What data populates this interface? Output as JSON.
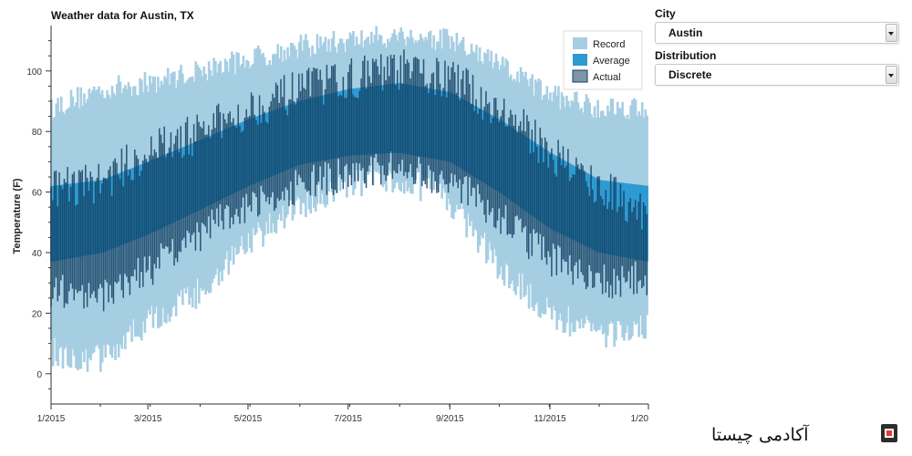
{
  "chart_data": {
    "type": "area",
    "title": "Weather data for Austin, TX",
    "ylabel": "Temperature (F)",
    "xlabel": "",
    "ylim": [
      -10,
      115
    ],
    "yticks": [
      0,
      20,
      40,
      60,
      80,
      100
    ],
    "xtick_labels": [
      "1/2015",
      "3/2015",
      "5/2015",
      "7/2015",
      "9/2015",
      "11/2015",
      "1/20"
    ],
    "legend": {
      "placement": "top-right",
      "entries": [
        "Record",
        "Average",
        "Actual"
      ]
    },
    "colors": {
      "record": "#a6cee3",
      "average": "#2e9ad2",
      "actual": "#123f61"
    },
    "grid": false,
    "series": [
      {
        "name": "Record",
        "x": [
          1,
          32,
          60,
          91,
          121,
          152,
          182,
          213,
          244,
          274,
          305,
          335,
          365
        ],
        "low": [
          12,
          10,
          22,
          32,
          48,
          60,
          68,
          70,
          62,
          40,
          25,
          18,
          20
        ],
        "high": [
          84,
          90,
          92,
          96,
          100,
          104,
          106,
          108,
          106,
          98,
          88,
          84,
          84
        ]
      },
      {
        "name": "Average",
        "x": [
          1,
          32,
          60,
          91,
          121,
          152,
          182,
          213,
          244,
          274,
          305,
          335,
          365
        ],
        "low": [
          37,
          40,
          46,
          54,
          62,
          69,
          72,
          73,
          70,
          60,
          48,
          40,
          37
        ],
        "high": [
          62,
          64,
          70,
          77,
          84,
          90,
          94,
          96,
          93,
          84,
          73,
          64,
          62
        ]
      },
      {
        "name": "Actual",
        "x": [
          1,
          32,
          60,
          91,
          121,
          152,
          182,
          213,
          244,
          274,
          305,
          335,
          365
        ],
        "low": [
          33,
          32,
          40,
          52,
          62,
          68,
          72,
          74,
          70,
          58,
          44,
          36,
          38
        ],
        "high": [
          60,
          62,
          72,
          78,
          86,
          92,
          96,
          99,
          96,
          86,
          72,
          60,
          52
        ]
      }
    ]
  },
  "controls": {
    "city_label": "City",
    "city_value": "Austin",
    "distribution_label": "Distribution",
    "distribution_value": "Discrete"
  },
  "brand": {
    "name": "آکادمی چیستا"
  }
}
